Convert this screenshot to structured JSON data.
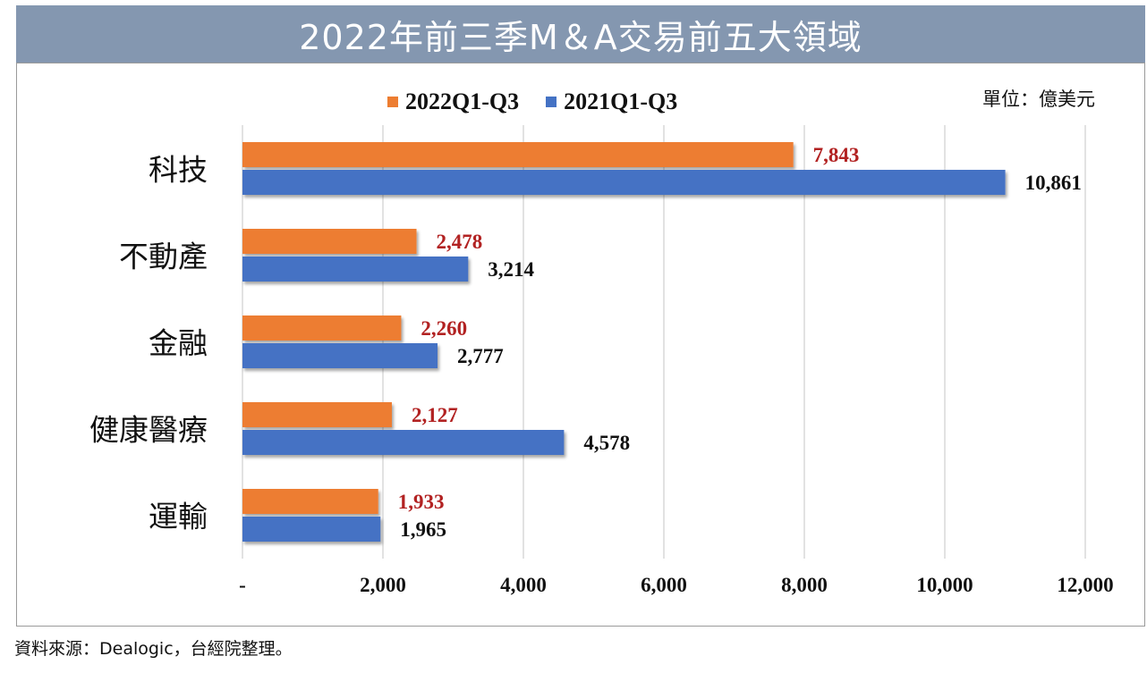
{
  "title": "2022年前三季M＆A交易前五大領域",
  "unit": "單位：億美元",
  "source": "資料來源：Dealogic，台經院整理。",
  "colors": {
    "series_2022": "#ed7d31",
    "series_2021": "#4472c4",
    "label_2022": "#b22222",
    "label_2021": "#111111",
    "title_bg": "#8497b0",
    "grid": "#d9d9d9"
  },
  "chart_data": {
    "type": "bar",
    "orientation": "horizontal",
    "categories": [
      "科技",
      "不動產",
      "金融",
      "健康醫療",
      "運輸"
    ],
    "series": [
      {
        "name": "2022Q1-Q3",
        "values": [
          7843,
          2478,
          2260,
          2127,
          1933
        ],
        "labels": [
          "7,843",
          "2,478",
          "2,260",
          "2,127",
          "1,933"
        ]
      },
      {
        "name": "2021Q1-Q3",
        "values": [
          10861,
          3214,
          2777,
          4578,
          1965
        ],
        "labels": [
          "10,861",
          "3,214",
          "2,777",
          "4,578",
          "1,965"
        ]
      }
    ],
    "xlim": [
      0,
      12000
    ],
    "xticks": [
      0,
      2000,
      4000,
      6000,
      8000,
      10000,
      12000
    ],
    "xtick_labels": [
      "-",
      "2,000",
      "4,000",
      "6,000",
      "8,000",
      "10,000",
      "12,000"
    ],
    "grid": true,
    "legend_position": "top"
  }
}
